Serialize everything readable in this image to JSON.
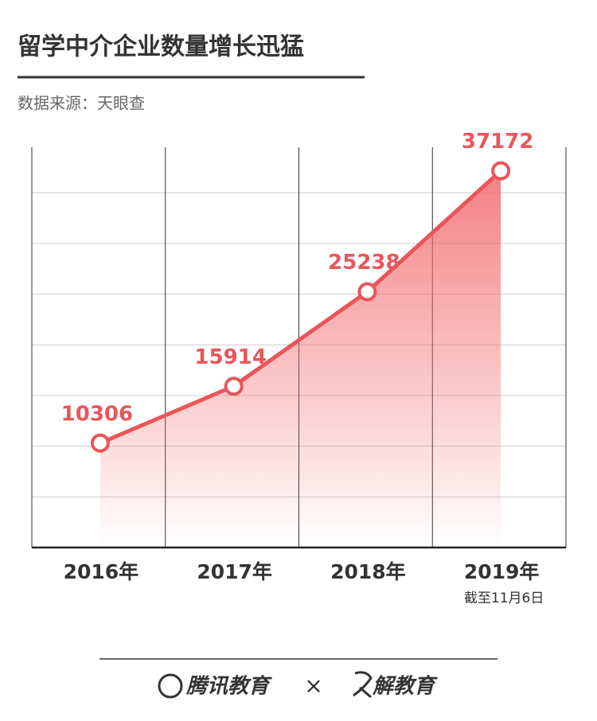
{
  "chart_data": {
    "type": "line",
    "title": "留学中介企业数量增长迅猛",
    "source": "数据来源：天眼查",
    "categories": [
      "2016年",
      "2017年",
      "2018年",
      "2019年"
    ],
    "values": [
      10306,
      15914,
      25238,
      37172
    ],
    "color": "#e9565a",
    "ylim": [
      0,
      39500
    ],
    "yticks": [
      5000,
      10000,
      15000,
      20000,
      25000,
      30000,
      35000
    ],
    "grid": true,
    "note": "截至11月6日"
  },
  "footer": {
    "brand_left": "腾讯教育",
    "separator": "×",
    "brand_right": "解教育"
  }
}
